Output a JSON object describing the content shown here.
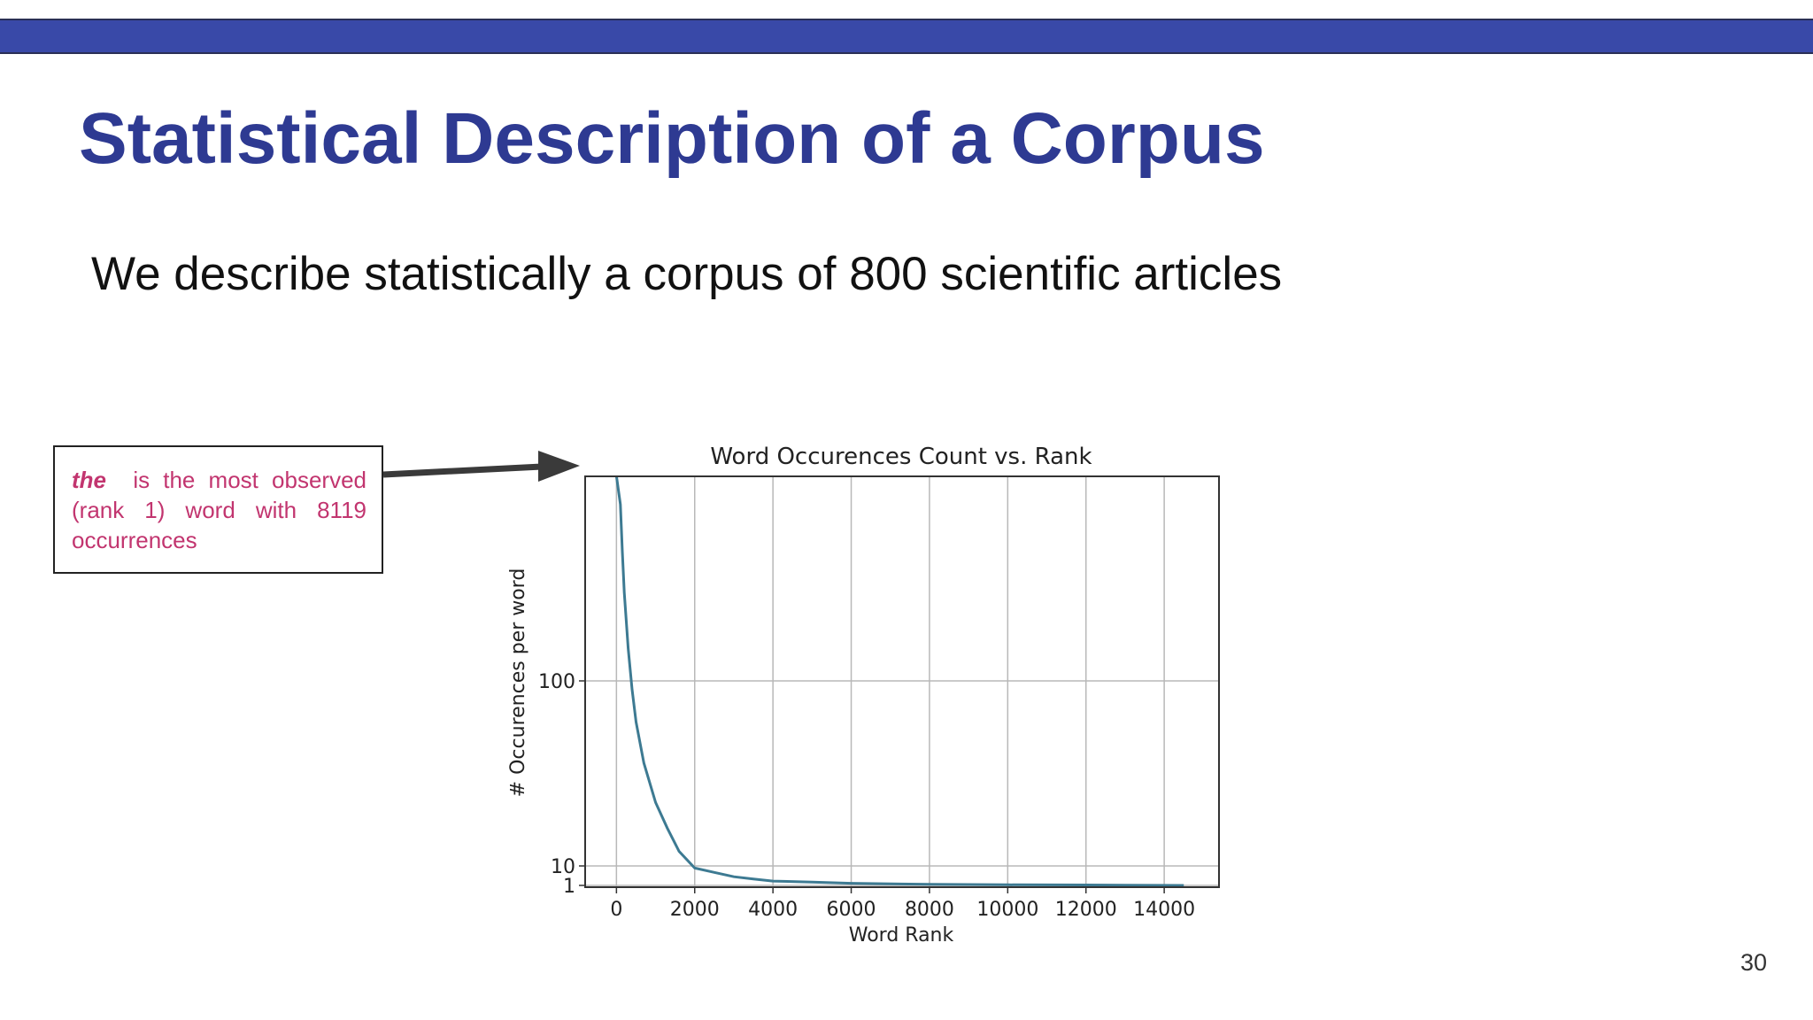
{
  "slide": {
    "title": "Statistical Description of a Corpus",
    "subtitle": "We describe statistically a corpus of 800 scientific articles",
    "page_number": "30",
    "accent_color": "#3949a8",
    "title_color": "#2e3a92"
  },
  "callout": {
    "emphasis": "the",
    "text": "is the most observed (rank 1) word with 8119 occurrences",
    "color": "#c2356f"
  },
  "chart_data": {
    "type": "line",
    "title": "Word Occurences Count vs. Rank",
    "xlabel": "Word Rank",
    "ylabel": "# Occurences per word",
    "x_ticks": [
      0,
      2000,
      4000,
      6000,
      8000,
      10000,
      12000,
      14000
    ],
    "x_tick_labels": [
      "0",
      "2000",
      "4000",
      "6000",
      "8000",
      "10000",
      "12000",
      "14000"
    ],
    "y_ticks": [
      1,
      10,
      100
    ],
    "y_tick_labels": [
      "1",
      "10",
      "100"
    ],
    "y_scale": "symlog",
    "xlim": [
      -800,
      15400
    ],
    "grid": true,
    "line_color": "#3d7a92",
    "series": [
      {
        "x": [
          1,
          100,
          150,
          200,
          300,
          400,
          500,
          700,
          1000,
          1300,
          1600,
          2000,
          2500,
          3000,
          3500,
          4000,
          5000,
          6000,
          8000,
          10000,
          12000,
          14500
        ],
        "values": [
          8119,
          900,
          500,
          300,
          150,
          90,
          60,
          36,
          22,
          16,
          12,
          9,
          7,
          5,
          4,
          3,
          2.5,
          2,
          1.5,
          1.3,
          1.2,
          1
        ]
      }
    ]
  }
}
